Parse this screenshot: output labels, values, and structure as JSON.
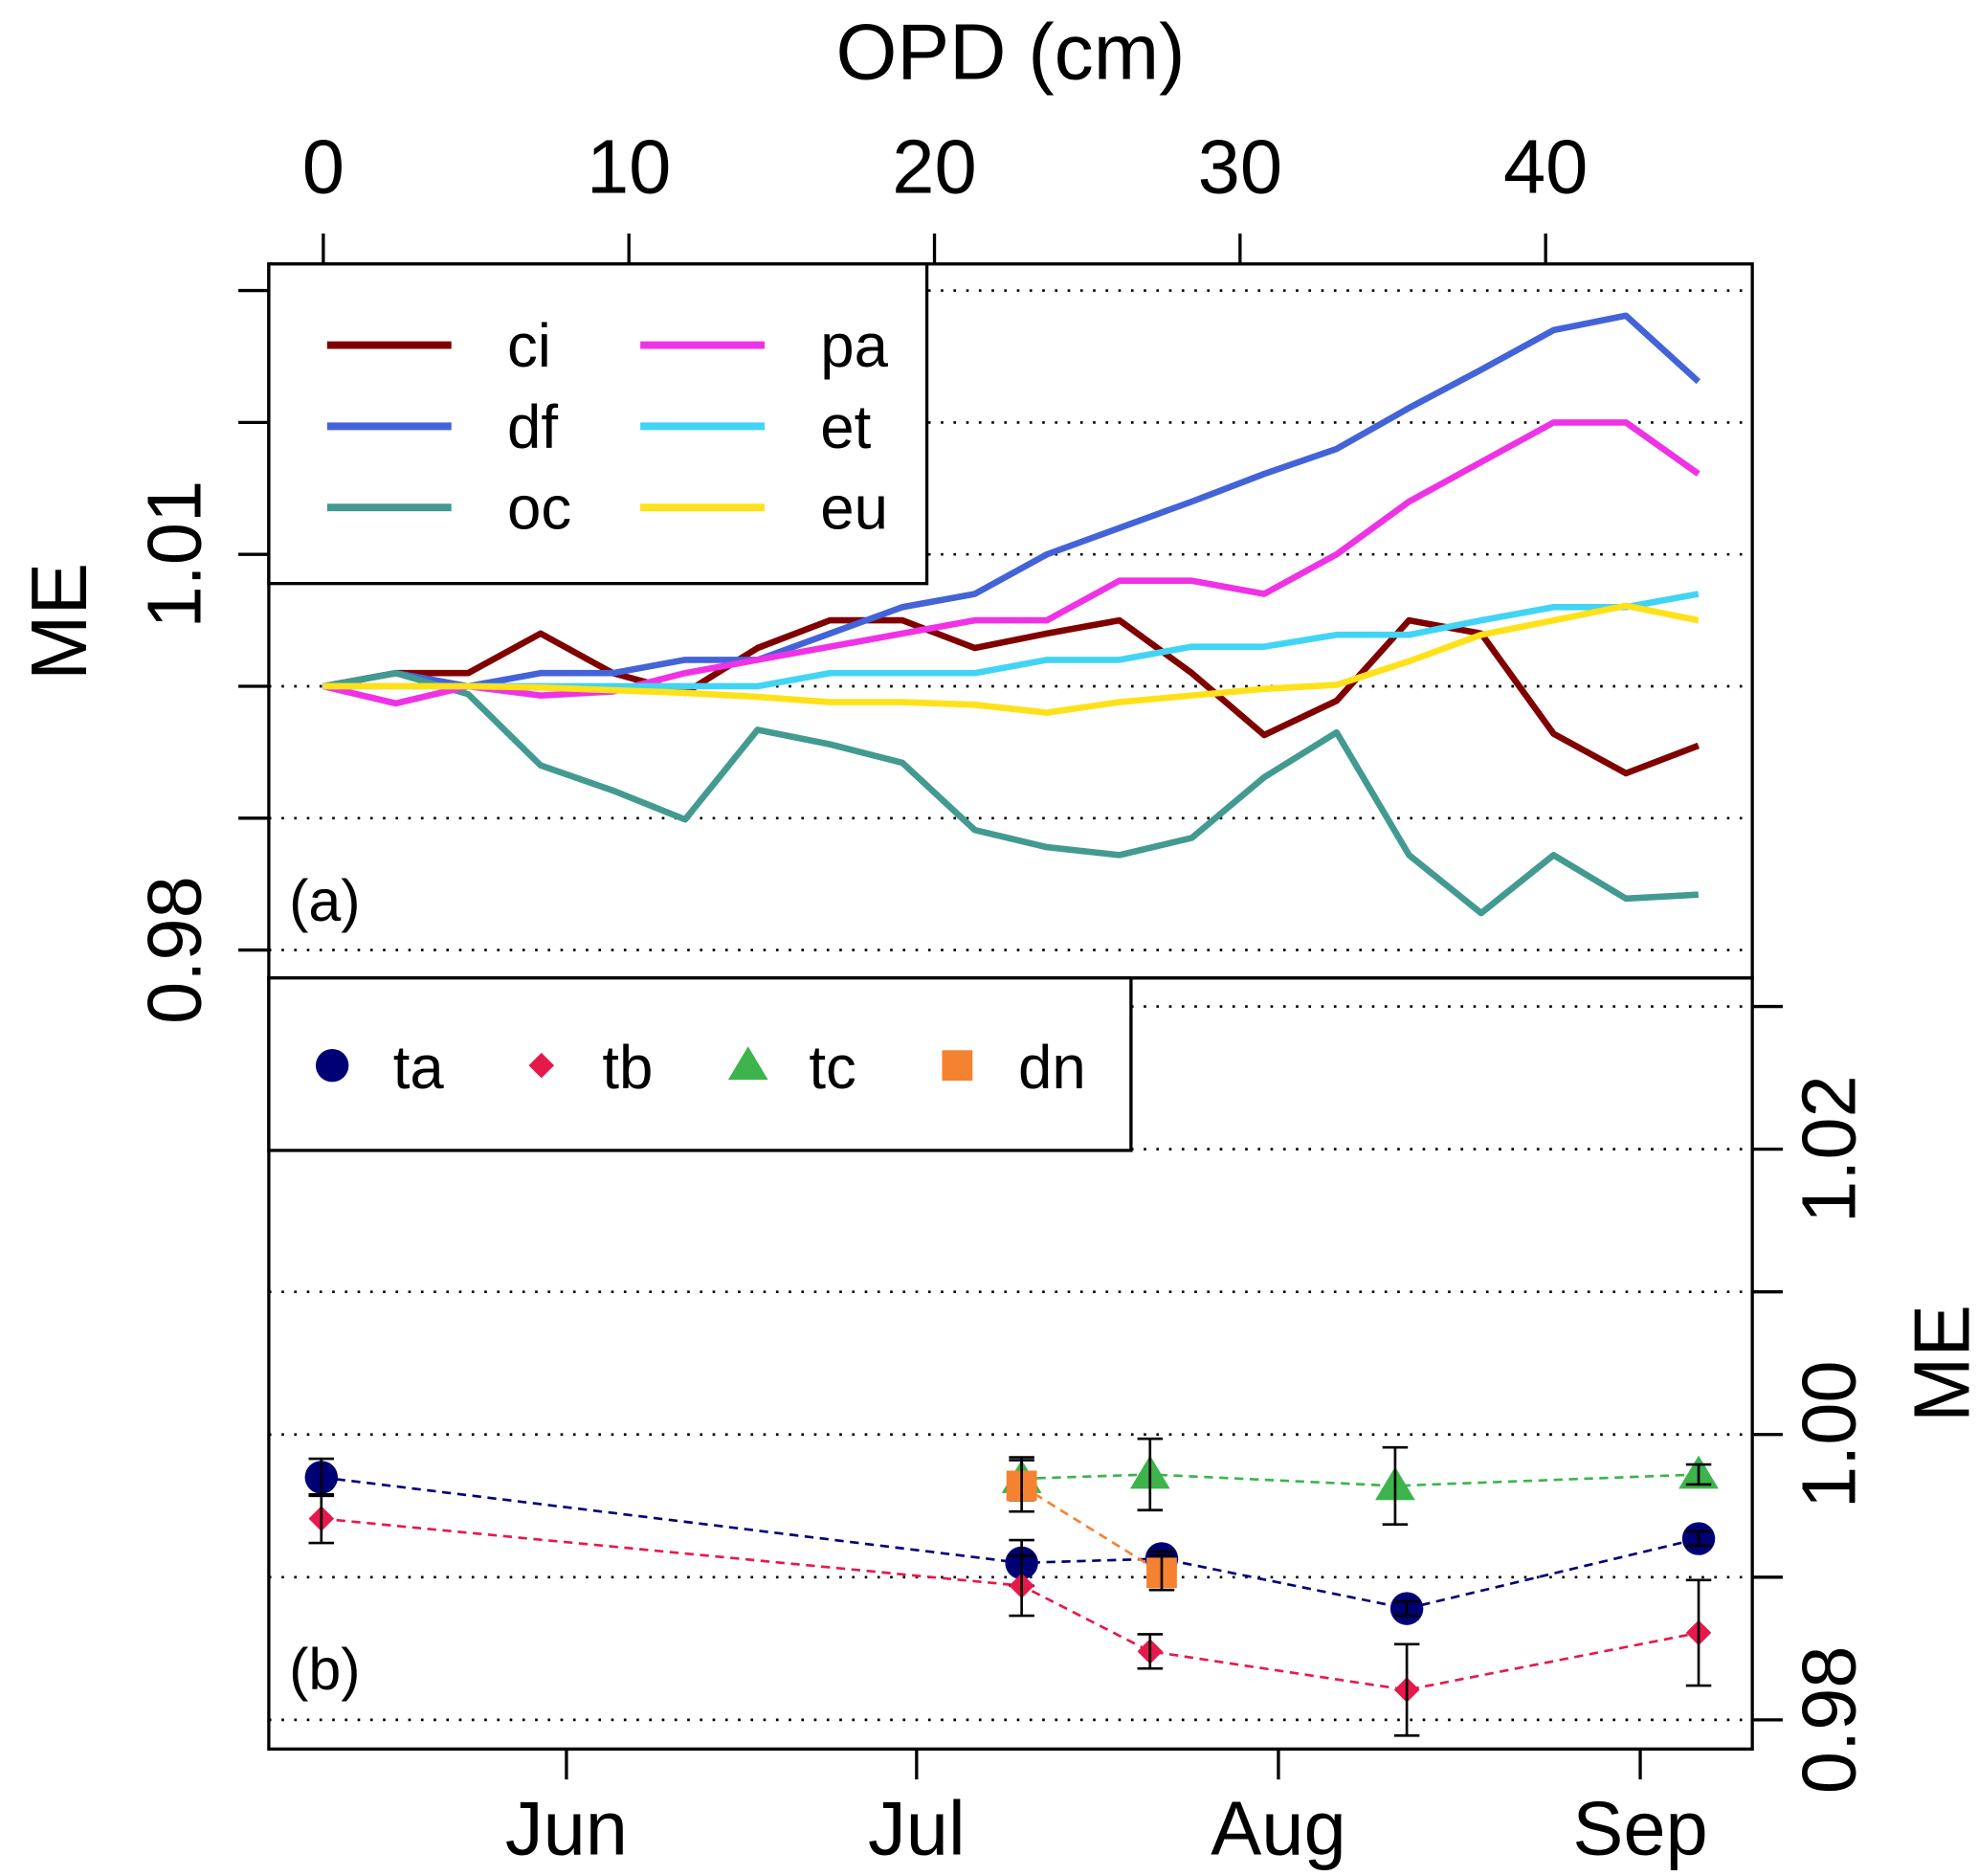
{
  "chart_data": [
    {
      "type": "line",
      "panel_label": "(a)",
      "title": "OPD (cm)",
      "xlabel": "OPD (cm)",
      "ylabel": "ME",
      "xlim": [
        -1.8,
        46.8
      ],
      "ylim": [
        0.978,
        1.032
      ],
      "x_ticks": [
        0,
        10,
        20,
        30,
        40
      ],
      "y_ticks": [
        0.98,
        0.99,
        1.0,
        1.01,
        1.02,
        1.03
      ],
      "y_tick_labels": [
        {
          "value": 1.01,
          "label": "1.01"
        },
        {
          "value": 0.98,
          "label": "0.98"
        }
      ],
      "grid": true,
      "legend_position": "top-left",
      "x": [
        0,
        2.37,
        4.74,
        7.11,
        9.47,
        11.84,
        14.21,
        16.58,
        18.95,
        21.32,
        23.68,
        26.05,
        28.42,
        30.79,
        33.16,
        35.53,
        37.89,
        40.26,
        42.63,
        45.0
      ],
      "series": [
        {
          "name": "ci",
          "color": "#800000",
          "values": [
            1.0,
            1.001,
            1.001,
            1.004,
            1.001,
            0.9995,
            1.0029,
            1.005,
            1.005,
            1.0029,
            1.004,
            1.005,
            1.001,
            0.9963,
            0.9989,
            1.005,
            1.004,
            0.9964,
            0.9934,
            0.9955
          ]
        },
        {
          "name": "df",
          "color": "#4363d8",
          "values": [
            1.0,
            1.001,
            1.0,
            1.001,
            1.001,
            1.002,
            1.002,
            1.004,
            1.006,
            1.007,
            1.01,
            1.012,
            1.014,
            1.0161,
            1.018,
            1.0211,
            1.024,
            1.027,
            1.0281,
            1.0231
          ]
        },
        {
          "name": "oc",
          "color": "#429a90",
          "values": [
            1.0,
            1.001,
            0.9994,
            0.994,
            0.9921,
            0.9899,
            0.9967,
            0.9956,
            0.9942,
            0.9891,
            0.9878,
            0.9872,
            0.9885,
            0.9931,
            0.9965,
            0.9872,
            0.9828,
            0.9872,
            0.9839,
            0.9842
          ]
        },
        {
          "name": "pa",
          "color": "#f032e6",
          "values": [
            1.0,
            0.9987,
            1.0,
            0.9993,
            0.9996,
            1.001,
            1.002,
            1.003,
            1.004,
            1.005,
            1.005,
            1.008,
            1.008,
            1.007,
            1.01,
            1.014,
            1.017,
            1.02,
            1.02,
            1.0161
          ]
        },
        {
          "name": "et",
          "color": "#42d4f4",
          "values": [
            1.0,
            1.0,
            1.0,
            1.0,
            1.0,
            1.0,
            1.0,
            1.001,
            1.001,
            1.001,
            1.002,
            1.002,
            1.003,
            1.003,
            1.0039,
            1.0039,
            1.005,
            1.006,
            1.006,
            1.007
          ]
        },
        {
          "name": "eu",
          "color": "#ffe119",
          "values": [
            1.0,
            1.0,
            1.0,
            0.9999,
            0.9997,
            0.9995,
            0.9992,
            0.9988,
            0.9988,
            0.9986,
            0.998,
            0.9988,
            0.9993,
            0.9998,
            1.0001,
            1.0019,
            1.0039,
            1.005,
            1.0061,
            1.005
          ]
        }
      ]
    },
    {
      "type": "scatter",
      "panel_label": "(b)",
      "xlabel": "",
      "ylabel": "ME",
      "xlim_day_of_year": [
        126.5,
        253.6
      ],
      "ylim": [
        0.978,
        1.032
      ],
      "x_ticks": [
        {
          "label": "Jun",
          "day": 152
        },
        {
          "label": "Jul",
          "day": 182
        },
        {
          "label": "Aug",
          "day": 213
        },
        {
          "label": "Sep",
          "day": 244
        }
      ],
      "y_ticks": [
        0.98,
        0.99,
        1.0,
        1.01,
        1.02,
        1.03
      ],
      "y_tick_labels": [
        {
          "value": 1.02,
          "label": "1.02"
        },
        {
          "value": 1.0,
          "label": "1.00"
        },
        {
          "value": 0.98,
          "label": "0.98"
        }
      ],
      "grid": true,
      "legend_position": "top-left",
      "series": [
        {
          "name": "ta",
          "color": "#000075",
          "marker": "circle",
          "points": [
            {
              "date": "May 11",
              "day": 131,
              "y": 0.997,
              "err": 0.0013
            },
            {
              "date": "Jul 10",
              "day": 191,
              "y": 0.991,
              "err": 0.0016
            },
            {
              "date": "Jul 22",
              "day": 203,
              "y": 0.9913,
              "err": 0.0005
            },
            {
              "date": "Aug 12",
              "day": 224,
              "y": 0.9878,
              "err": 0.0005
            },
            {
              "date": "Sep 6",
              "day": 249,
              "y": 0.9927,
              "err": 0.0005
            }
          ]
        },
        {
          "name": "tb",
          "color": "#e6194b",
          "marker": "diamond",
          "points": [
            {
              "date": "May 11",
              "day": 131,
              "y": 0.9941,
              "err": 0.0017
            },
            {
              "date": "Jul 10",
              "day": 191,
              "y": 0.9894,
              "err": 0.0021
            },
            {
              "date": "Jul 21",
              "day": 202,
              "y": 0.9848,
              "err": 0.0012
            },
            {
              "date": "Aug 12",
              "day": 224,
              "y": 0.9821,
              "err": 0.0032
            },
            {
              "date": "Sep 6",
              "day": 249,
              "y": 0.9861,
              "err": 0.0037
            }
          ]
        },
        {
          "name": "tc",
          "color": "#3cb44b",
          "marker": "triangle",
          "points": [
            {
              "date": "Jul 10",
              "day": 191,
              "y": 0.9969,
              "err": 0.0015
            },
            {
              "date": "Jul 21",
              "day": 202,
              "y": 0.9972,
              "err": 0.0025
            },
            {
              "date": "Aug 11",
              "day": 223,
              "y": 0.9964,
              "err": 0.0027
            },
            {
              "date": "Sep 6",
              "day": 249,
              "y": 0.9972,
              "err": 0.0007
            }
          ]
        },
        {
          "name": "dn",
          "color": "#f58231",
          "marker": "square",
          "points": [
            {
              "date": "Jul 10",
              "day": 191,
              "y": 0.9964,
              "err": 0.0018
            },
            {
              "date": "Jul 22",
              "day": 203,
              "y": 0.9903,
              "err": 0.0012
            }
          ]
        }
      ]
    }
  ]
}
